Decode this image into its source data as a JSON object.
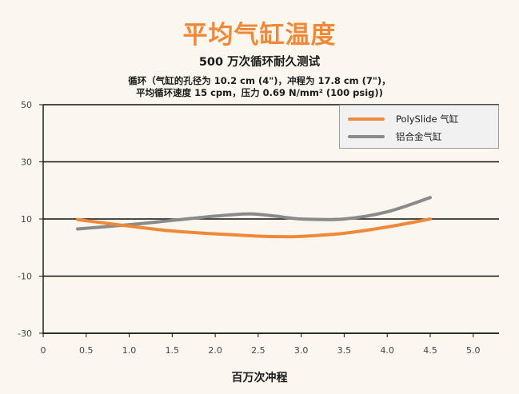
{
  "chart_data": {
    "type": "line",
    "title": "平均气缸温度",
    "subtitle": "500 万次循环耐久测试",
    "description_line1": "循环（气缸的孔径为 10.2 cm (4\")，冲程为 17.8 cm (7\")，",
    "description_line2": "平均循环速度 15 cpm，压力 0.69 N/mm² (100 psig))",
    "xlabel": "百万次冲程",
    "ylabel": "",
    "xlim": [
      0,
      5.3
    ],
    "ylim": [
      -30,
      50
    ],
    "x_ticks": [
      "0",
      "0.5",
      "1.0",
      "1.5",
      "2.0",
      "2.5",
      "3.0",
      "3.5",
      "4.0",
      "4.5",
      "5.0"
    ],
    "y_ticks": [
      "50",
      "30",
      "10",
      "-10",
      "-30"
    ],
    "grid": "horizontal",
    "legend": "top-right",
    "series": [
      {
        "name": "PolySlide 气缸",
        "color": "#f0883a",
        "x": [
          0.4,
          1.0,
          1.5,
          2.0,
          2.5,
          2.8,
          3.0,
          3.5,
          4.0,
          4.5
        ],
        "y": [
          9.8,
          7.5,
          5.8,
          4.8,
          4.0,
          3.8,
          3.9,
          5.0,
          7.2,
          10.0
        ]
      },
      {
        "name": "铝合金气缸",
        "color": "#8a8a8a",
        "x": [
          0.4,
          1.0,
          1.5,
          2.0,
          2.4,
          2.7,
          3.0,
          3.5,
          4.0,
          4.5
        ],
        "y": [
          6.5,
          8.0,
          9.5,
          11.0,
          11.8,
          11.0,
          10.0,
          10.0,
          12.5,
          17.5
        ]
      }
    ]
  }
}
